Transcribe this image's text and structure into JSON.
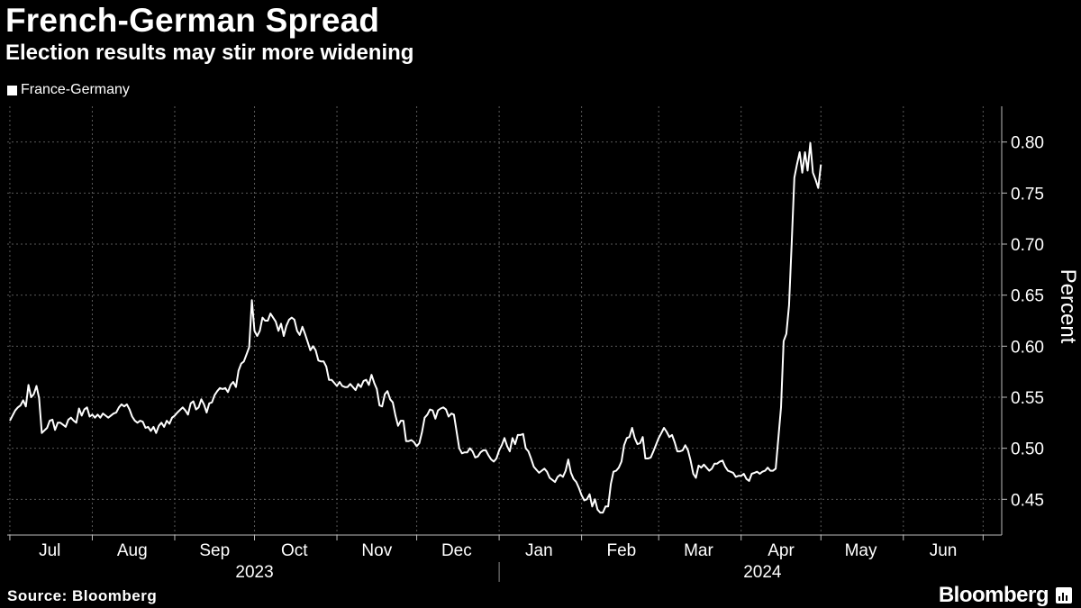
{
  "header": {
    "title": "French-German Spread",
    "subtitle": "Election results may stir more widening"
  },
  "legend": {
    "label": "France-Germany",
    "color": "#ffffff"
  },
  "footer": {
    "source": "Source: Bloomberg",
    "brand": "Bloomberg"
  },
  "chart_data": {
    "type": "line",
    "title": "French-German Spread",
    "subtitle": "Election results may stir more widening",
    "ylabel": "Percent",
    "xlabel": "",
    "ylim": [
      0.415,
      0.835
    ],
    "yticks": [
      0.45,
      0.5,
      0.55,
      0.6,
      0.65,
      0.7,
      0.75,
      0.8
    ],
    "ytick_labels": [
      "0.45",
      "0.50",
      "0.55",
      "0.60",
      "0.65",
      "0.70",
      "0.75",
      "0.80"
    ],
    "x_start_day": -1,
    "x_end_day": 373,
    "month_labels": [
      {
        "label": "Jul",
        "day": 15
      },
      {
        "label": "Aug",
        "day": 46
      },
      {
        "label": "Sep",
        "day": 77
      },
      {
        "label": "Oct",
        "day": 107
      },
      {
        "label": "Nov",
        "day": 138
      },
      {
        "label": "Dec",
        "day": 168
      },
      {
        "label": "Jan",
        "day": 199
      },
      {
        "label": "Feb",
        "day": 230
      },
      {
        "label": "Mar",
        "day": 259
      },
      {
        "label": "Apr",
        "day": 290
      },
      {
        "label": "May",
        "day": 320
      },
      {
        "label": "Jun",
        "day": 351
      }
    ],
    "month_boundaries": [
      0,
      31,
      62,
      92,
      123,
      153,
      184,
      215,
      244,
      275,
      305,
      336,
      366
    ],
    "year_labels": [
      {
        "label": "2023",
        "day": 92
      },
      {
        "label": "2024",
        "day": 283
      }
    ],
    "year_divider_day": 184,
    "grid": true,
    "series": [
      {
        "name": "France-Germany",
        "color": "#ffffff",
        "points": [
          [
            0,
            0.527
          ],
          [
            1,
            0.532
          ],
          [
            2,
            0.537
          ],
          [
            3,
            0.54
          ],
          [
            4,
            0.542
          ],
          [
            5,
            0.547
          ],
          [
            6,
            0.541
          ],
          [
            7,
            0.562
          ],
          [
            8,
            0.55
          ],
          [
            9,
            0.553
          ],
          [
            10,
            0.561
          ],
          [
            11,
            0.549
          ],
          [
            12,
            0.515
          ],
          [
            14,
            0.52
          ],
          [
            15,
            0.527
          ],
          [
            16,
            0.528
          ],
          [
            17,
            0.518
          ],
          [
            18,
            0.525
          ],
          [
            19,
            0.525
          ],
          [
            20,
            0.523
          ],
          [
            21,
            0.521
          ],
          [
            22,
            0.528
          ],
          [
            23,
            0.53
          ],
          [
            24,
            0.527
          ],
          [
            25,
            0.525
          ],
          [
            26,
            0.539
          ],
          [
            27,
            0.532
          ],
          [
            28,
            0.538
          ],
          [
            29,
            0.54
          ],
          [
            30,
            0.531
          ],
          [
            31,
            0.533
          ],
          [
            32,
            0.53
          ],
          [
            33,
            0.533
          ],
          [
            34,
            0.53
          ],
          [
            35,
            0.534
          ],
          [
            36,
            0.532
          ],
          [
            37,
            0.53
          ],
          [
            39,
            0.534
          ],
          [
            40,
            0.535
          ],
          [
            41,
            0.54
          ],
          [
            42,
            0.543
          ],
          [
            43,
            0.541
          ],
          [
            44,
            0.543
          ],
          [
            45,
            0.538
          ],
          [
            46,
            0.531
          ],
          [
            47,
            0.527
          ],
          [
            48,
            0.525
          ],
          [
            49,
            0.527
          ],
          [
            50,
            0.526
          ],
          [
            51,
            0.52
          ],
          [
            52,
            0.521
          ],
          [
            53,
            0.517
          ],
          [
            54,
            0.521
          ],
          [
            55,
            0.515
          ],
          [
            56,
            0.522
          ],
          [
            57,
            0.525
          ],
          [
            58,
            0.521
          ],
          [
            59,
            0.527
          ],
          [
            60,
            0.524
          ],
          [
            61,
            0.53
          ],
          [
            62,
            0.532
          ],
          [
            63,
            0.535
          ],
          [
            65,
            0.54
          ],
          [
            66,
            0.537
          ],
          [
            67,
            0.533
          ],
          [
            68,
            0.544
          ],
          [
            69,
            0.546
          ],
          [
            70,
            0.538
          ],
          [
            71,
            0.54
          ],
          [
            72,
            0.548
          ],
          [
            73,
            0.543
          ],
          [
            74,
            0.535
          ],
          [
            75,
            0.544
          ],
          [
            76,
            0.545
          ],
          [
            77,
            0.552
          ],
          [
            78,
            0.556
          ],
          [
            79,
            0.559
          ],
          [
            80,
            0.558
          ],
          [
            81,
            0.559
          ],
          [
            82,
            0.555
          ],
          [
            83,
            0.562
          ],
          [
            84,
            0.565
          ],
          [
            85,
            0.56
          ],
          [
            86,
            0.576
          ],
          [
            87,
            0.583
          ],
          [
            88,
            0.585
          ],
          [
            89,
            0.592
          ],
          [
            90,
            0.599
          ],
          [
            91,
            0.645
          ],
          [
            92,
            0.615
          ],
          [
            93,
            0.61
          ],
          [
            94,
            0.615
          ],
          [
            95,
            0.628
          ],
          [
            96,
            0.625
          ],
          [
            97,
            0.625
          ],
          [
            98,
            0.632
          ],
          [
            100,
            0.624
          ],
          [
            101,
            0.615
          ],
          [
            102,
            0.622
          ],
          [
            103,
            0.61
          ],
          [
            104,
            0.62
          ],
          [
            105,
            0.626
          ],
          [
            106,
            0.628
          ],
          [
            107,
            0.626
          ],
          [
            108,
            0.615
          ],
          [
            109,
            0.611
          ],
          [
            110,
            0.619
          ],
          [
            111,
            0.612
          ],
          [
            112,
            0.604
          ],
          [
            113,
            0.596
          ],
          [
            114,
            0.6
          ],
          [
            115,
            0.596
          ],
          [
            116,
            0.586
          ],
          [
            117,
            0.585
          ],
          [
            118,
            0.585
          ],
          [
            119,
            0.58
          ],
          [
            120,
            0.567
          ],
          [
            121,
            0.567
          ],
          [
            122,
            0.564
          ],
          [
            123,
            0.561
          ],
          [
            124,
            0.565
          ],
          [
            125,
            0.561
          ],
          [
            126,
            0.56
          ],
          [
            127,
            0.56
          ],
          [
            128,
            0.563
          ],
          [
            130,
            0.557
          ],
          [
            131,
            0.563
          ],
          [
            132,
            0.56
          ],
          [
            133,
            0.566
          ],
          [
            134,
            0.567
          ],
          [
            135,
            0.562
          ],
          [
            136,
            0.572
          ],
          [
            137,
            0.564
          ],
          [
            138,
            0.558
          ],
          [
            139,
            0.542
          ],
          [
            140,
            0.541
          ],
          [
            141,
            0.553
          ],
          [
            142,
            0.556
          ],
          [
            143,
            0.548
          ],
          [
            144,
            0.545
          ],
          [
            145,
            0.532
          ],
          [
            146,
            0.522
          ],
          [
            147,
            0.527
          ],
          [
            148,
            0.527
          ],
          [
            149,
            0.507
          ],
          [
            150,
            0.507
          ],
          [
            151,
            0.508
          ],
          [
            152,
            0.506
          ],
          [
            153,
            0.502
          ],
          [
            154,
            0.505
          ],
          [
            155,
            0.516
          ],
          [
            156,
            0.53
          ],
          [
            157,
            0.533
          ],
          [
            158,
            0.538
          ],
          [
            159,
            0.537
          ],
          [
            160,
            0.529
          ],
          [
            161,
            0.537
          ],
          [
            162,
            0.539
          ],
          [
            163,
            0.54
          ],
          [
            164,
            0.538
          ],
          [
            165,
            0.531
          ],
          [
            166,
            0.534
          ],
          [
            167,
            0.533
          ],
          [
            169,
            0.5
          ],
          [
            170,
            0.495
          ],
          [
            171,
            0.496
          ],
          [
            172,
            0.496
          ],
          [
            173,
            0.5
          ],
          [
            174,
            0.497
          ],
          [
            175,
            0.491
          ],
          [
            176,
            0.492
          ],
          [
            177,
            0.496
          ],
          [
            178,
            0.498
          ],
          [
            179,
            0.498
          ],
          [
            180,
            0.493
          ],
          [
            181,
            0.489
          ],
          [
            182,
            0.487
          ],
          [
            183,
            0.49
          ],
          [
            184,
            0.498
          ],
          [
            185,
            0.503
          ],
          [
            186,
            0.51
          ],
          [
            187,
            0.502
          ],
          [
            188,
            0.497
          ],
          [
            189,
            0.51
          ],
          [
            190,
            0.504
          ],
          [
            191,
            0.513
          ],
          [
            192,
            0.513
          ],
          [
            193,
            0.514
          ],
          [
            194,
            0.5
          ],
          [
            195,
            0.497
          ],
          [
            196,
            0.49
          ],
          [
            197,
            0.482
          ],
          [
            198,
            0.479
          ],
          [
            199,
            0.476
          ],
          [
            200,
            0.478
          ],
          [
            201,
            0.48
          ],
          [
            202,
            0.477
          ],
          [
            203,
            0.471
          ],
          [
            205,
            0.467
          ],
          [
            206,
            0.472
          ],
          [
            207,
            0.474
          ],
          [
            208,
            0.472
          ],
          [
            209,
            0.478
          ],
          [
            210,
            0.489
          ],
          [
            211,
            0.476
          ],
          [
            212,
            0.47
          ],
          [
            213,
            0.467
          ],
          [
            214,
            0.461
          ],
          [
            215,
            0.454
          ],
          [
            216,
            0.449
          ],
          [
            217,
            0.45
          ],
          [
            218,
            0.455
          ],
          [
            219,
            0.443
          ],
          [
            220,
            0.45
          ],
          [
            221,
            0.44
          ],
          [
            222,
            0.437
          ],
          [
            223,
            0.437
          ],
          [
            224,
            0.443
          ],
          [
            225,
            0.443
          ],
          [
            226,
            0.465
          ],
          [
            227,
            0.477
          ],
          [
            228,
            0.478
          ],
          [
            229,
            0.481
          ],
          [
            230,
            0.487
          ],
          [
            231,
            0.503
          ],
          [
            232,
            0.51
          ],
          [
            233,
            0.511
          ],
          [
            234,
            0.52
          ],
          [
            235,
            0.51
          ],
          [
            236,
            0.504
          ],
          [
            237,
            0.505
          ],
          [
            238,
            0.511
          ],
          [
            239,
            0.49
          ],
          [
            240,
            0.49
          ],
          [
            241,
            0.491
          ],
          [
            242,
            0.497
          ],
          [
            244,
            0.51
          ],
          [
            245,
            0.515
          ],
          [
            246,
            0.52
          ],
          [
            247,
            0.516
          ],
          [
            248,
            0.511
          ],
          [
            249,
            0.513
          ],
          [
            250,
            0.506
          ],
          [
            251,
            0.497
          ],
          [
            252,
            0.497
          ],
          [
            253,
            0.498
          ],
          [
            254,
            0.503
          ],
          [
            255,
            0.498
          ],
          [
            256,
            0.488
          ],
          [
            257,
            0.475
          ],
          [
            258,
            0.471
          ],
          [
            259,
            0.483
          ],
          [
            260,
            0.481
          ],
          [
            261,
            0.484
          ],
          [
            262,
            0.481
          ],
          [
            263,
            0.478
          ],
          [
            264,
            0.48
          ],
          [
            265,
            0.485
          ],
          [
            266,
            0.485
          ],
          [
            267,
            0.487
          ],
          [
            268,
            0.488
          ],
          [
            269,
            0.482
          ],
          [
            270,
            0.478
          ],
          [
            271,
            0.477
          ],
          [
            272,
            0.476
          ],
          [
            273,
            0.472
          ],
          [
            274,
            0.473
          ],
          [
            275,
            0.473
          ],
          [
            276,
            0.475
          ],
          [
            277,
            0.47
          ],
          [
            278,
            0.468
          ],
          [
            279,
            0.475
          ],
          [
            280,
            0.476
          ],
          [
            281,
            0.477
          ],
          [
            282,
            0.475
          ],
          [
            283,
            0.477
          ],
          [
            284,
            0.478
          ],
          [
            285,
            0.481
          ],
          [
            286,
            0.478
          ],
          [
            287,
            0.478
          ],
          [
            288,
            0.48
          ],
          [
            290,
            0.54
          ],
          [
            291,
            0.605
          ],
          [
            292,
            0.612
          ],
          [
            293,
            0.64
          ],
          [
            294,
            0.7
          ],
          [
            295,
            0.765
          ],
          [
            296,
            0.778
          ],
          [
            297,
            0.79
          ],
          [
            298,
            0.77
          ],
          [
            299,
            0.79
          ],
          [
            300,
            0.772
          ],
          [
            301,
            0.799
          ],
          [
            302,
            0.77
          ],
          [
            303,
            0.763
          ],
          [
            304,
            0.755
          ],
          [
            305,
            0.778
          ]
        ]
      }
    ]
  }
}
